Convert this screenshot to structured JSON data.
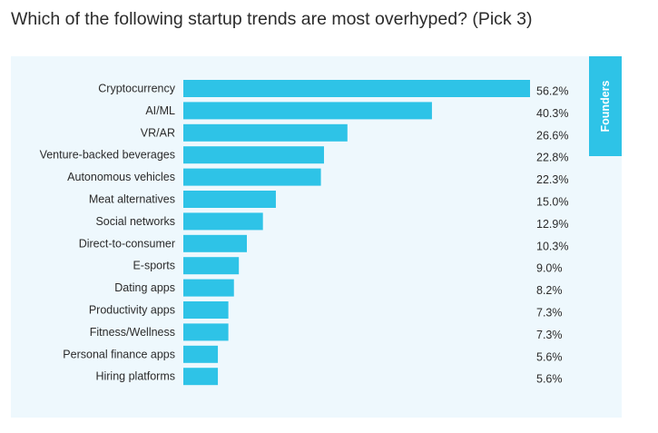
{
  "title": "Which of the following startup trends are most overhyped? (Pick 3)",
  "legend_tab": "Founders",
  "colors": {
    "bar": "#2ec3e7",
    "panel": "#eef8fd",
    "text": "#2b2b2b"
  },
  "chart_data": {
    "type": "bar",
    "orientation": "horizontal",
    "title": "Which of the following startup trends are most overhyped? (Pick 3)",
    "categories": [
      "Cryptocurrency",
      "AI/ML",
      "VR/AR",
      "Venture-backed beverages",
      "Autonomous vehicles",
      "Meat alternatives",
      "Social networks",
      "Direct-to-consumer",
      "E-sports",
      "Dating apps",
      "Productivity apps",
      "Fitness/Wellness",
      "Personal finance apps",
      "Hiring platforms"
    ],
    "series": [
      {
        "name": "Founders",
        "values": [
          56.2,
          40.3,
          26.6,
          22.8,
          22.3,
          15.0,
          12.9,
          10.3,
          9.0,
          8.2,
          7.3,
          7.3,
          5.6,
          5.6
        ],
        "labels": [
          "56.2%",
          "40.3%",
          "26.6%",
          "22.8%",
          "22.3%",
          "15.0%",
          "12.9%",
          "10.3%",
          "9.0%",
          "8.2%",
          "7.3%",
          "7.3%",
          "5.6%",
          "5.6%"
        ]
      }
    ],
    "xlim": [
      0,
      56.2
    ],
    "grid": false,
    "legend": "top-right"
  }
}
